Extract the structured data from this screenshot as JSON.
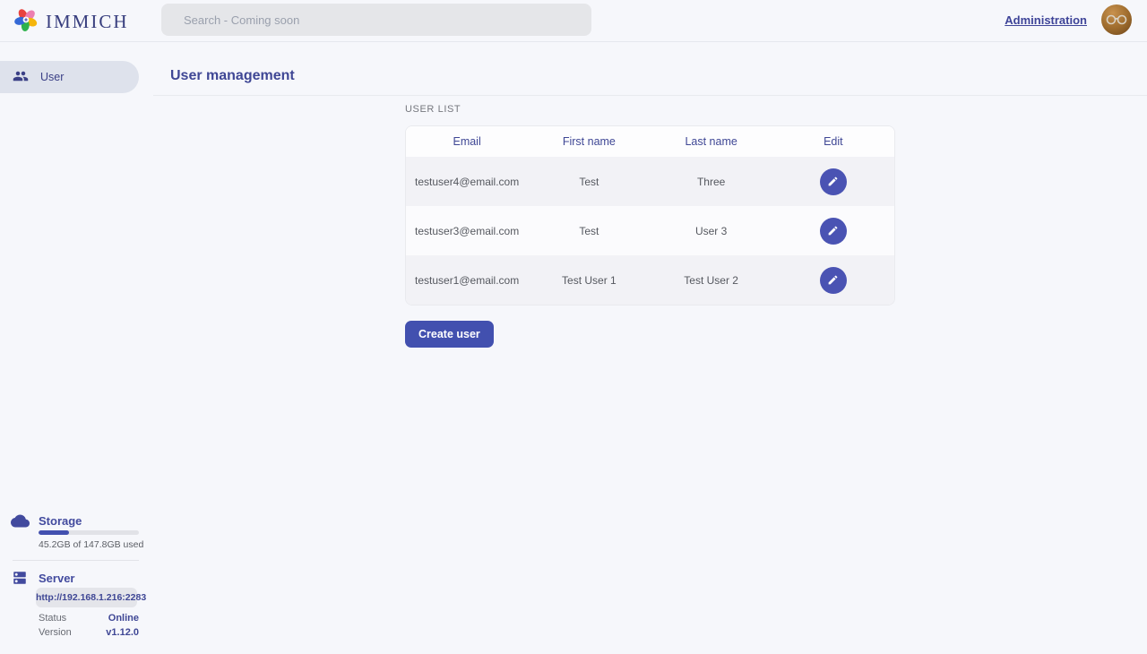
{
  "colors": {
    "primary": "#4250af",
    "dark_indigo": "#383e7e",
    "page_bg": "#f6f7fb"
  },
  "header": {
    "app_name": "IMMICH",
    "search_placeholder": "Search - Coming soon",
    "admin_link": "Administration"
  },
  "sidebar": {
    "nav": [
      {
        "label": "User"
      }
    ],
    "storage": {
      "title": "Storage",
      "usage_text": "45.2GB of 147.8GB used",
      "percent_used": 30.6
    },
    "server": {
      "title": "Server",
      "url": "http://192.168.1.216:2283",
      "status_label": "Status",
      "status_value": "Online",
      "version_label": "Version",
      "version_value": "v1.12.0"
    }
  },
  "main": {
    "page_title": "User management",
    "section_label": "USER LIST",
    "table": {
      "columns": [
        "Email",
        "First name",
        "Last name",
        "Edit"
      ],
      "rows": [
        {
          "email": "testuser4@email.com",
          "first_name": "Test",
          "last_name": "Three"
        },
        {
          "email": "testuser3@email.com",
          "first_name": "Test",
          "last_name": "User 3"
        },
        {
          "email": "testuser1@email.com",
          "first_name": "Test User 1",
          "last_name": "Test User 2"
        }
      ]
    },
    "create_button": "Create user"
  }
}
